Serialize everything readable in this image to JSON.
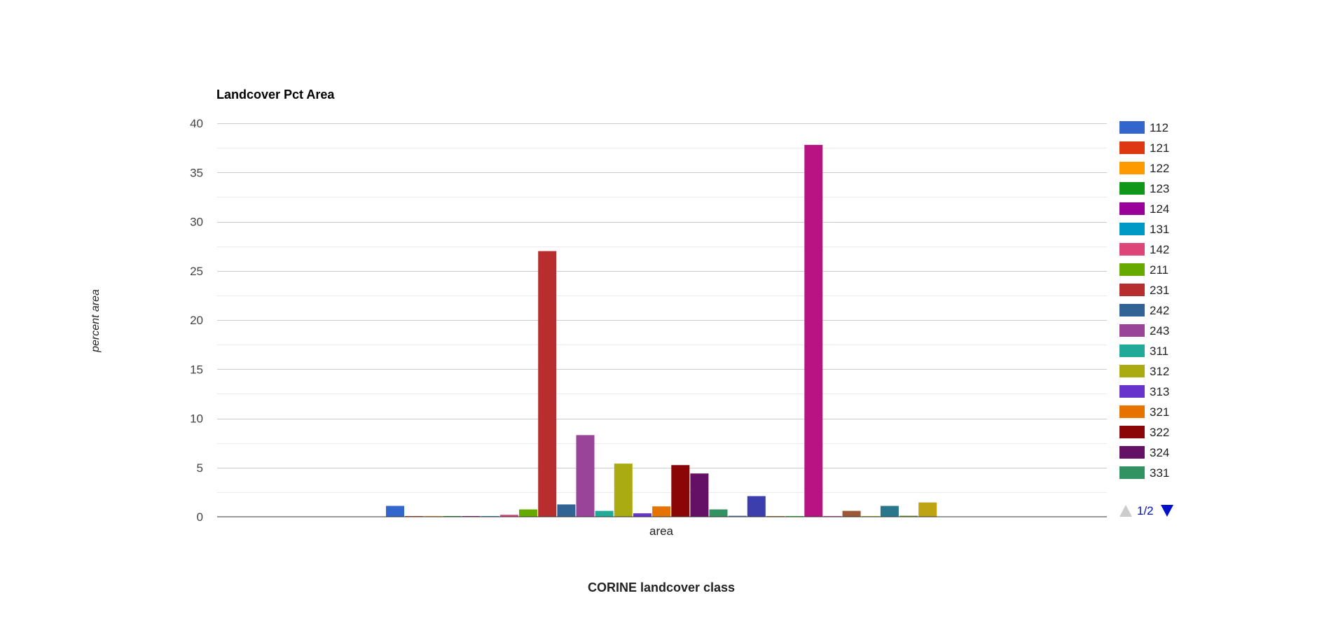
{
  "chart_data": {
    "type": "bar",
    "title": "Landcover Pct Area",
    "xlabel": "CORINE landcover class",
    "ylabel": "percent area",
    "categories": [
      "area"
    ],
    "ylim": [
      0,
      40
    ],
    "yticks": [
      "0",
      "5",
      "10",
      "15",
      "20",
      "25",
      "30",
      "35",
      "40"
    ],
    "grid": true,
    "legend_position": "right",
    "series": [
      {
        "name": "112",
        "color": "#3366cc",
        "values": [
          1.1
        ]
      },
      {
        "name": "121",
        "color": "#dc3912",
        "values": [
          0.05
        ]
      },
      {
        "name": "122",
        "color": "#ff9900",
        "values": [
          0.05
        ]
      },
      {
        "name": "123",
        "color": "#109618",
        "values": [
          0.03
        ]
      },
      {
        "name": "124",
        "color": "#990099",
        "values": [
          0.03
        ]
      },
      {
        "name": "131",
        "color": "#0099c6",
        "values": [
          0.05
        ]
      },
      {
        "name": "142",
        "color": "#dd4477",
        "values": [
          0.2
        ]
      },
      {
        "name": "211",
        "color": "#66aa00",
        "values": [
          0.75
        ]
      },
      {
        "name": "231",
        "color": "#b82e2e",
        "values": [
          27.0
        ]
      },
      {
        "name": "242",
        "color": "#316395",
        "values": [
          1.25
        ]
      },
      {
        "name": "243",
        "color": "#994499",
        "values": [
          8.3
        ]
      },
      {
        "name": "311",
        "color": "#22aa99",
        "values": [
          0.6
        ]
      },
      {
        "name": "312",
        "color": "#aaaa11",
        "values": [
          5.4
        ]
      },
      {
        "name": "313",
        "color": "#6633cc",
        "values": [
          0.35
        ]
      },
      {
        "name": "321",
        "color": "#e67300",
        "values": [
          1.05
        ]
      },
      {
        "name": "322",
        "color": "#8b0707",
        "values": [
          5.25
        ]
      },
      {
        "name": "324",
        "color": "#651067",
        "values": [
          4.4
        ]
      },
      {
        "name": "331",
        "color": "#329262",
        "values": [
          0.75
        ]
      },
      {
        "name": "",
        "color": "#5574a6",
        "values": [
          0.1
        ]
      },
      {
        "name": "",
        "color": "#3b3eac",
        "values": [
          2.1
        ]
      },
      {
        "name": "",
        "color": "#b77322",
        "values": [
          0.05
        ]
      },
      {
        "name": "",
        "color": "#16d620",
        "values": [
          0.05
        ]
      },
      {
        "name": "",
        "color": "#b91383",
        "values": [
          37.8
        ]
      },
      {
        "name": "",
        "color": "#f4359e",
        "values": [
          0.05
        ]
      },
      {
        "name": "",
        "color": "#9c5935",
        "values": [
          0.6
        ]
      },
      {
        "name": "",
        "color": "#a9c413",
        "values": [
          0.05
        ]
      },
      {
        "name": "",
        "color": "#2a778d",
        "values": [
          1.1
        ]
      },
      {
        "name": "",
        "color": "#668d1c",
        "values": [
          0.1
        ]
      },
      {
        "name": "",
        "color": "#bea413",
        "values": [
          1.45
        ]
      }
    ],
    "legend_visible_count": 18,
    "legend_page": "1/2",
    "legend_prev_icon": "triangle-up-icon",
    "legend_next_icon": "triangle-down-icon",
    "colors": {
      "grid": "#cccccc",
      "minor_grid": "#ebebeb",
      "axis_text": "#444444",
      "title_text": "#000000",
      "nav_active": "#0011cc",
      "nav_inactive": "#cccccc"
    }
  }
}
